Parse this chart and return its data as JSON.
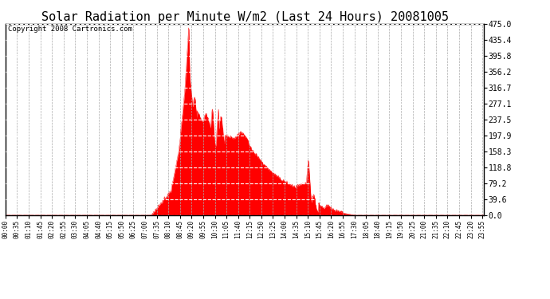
{
  "title": "Solar Radiation per Minute W/m2 (Last 24 Hours) 20081005",
  "copyright_text": "Copyright 2008 Cartronics.com",
  "y_ticks": [
    0.0,
    39.6,
    79.2,
    118.8,
    158.3,
    197.9,
    237.5,
    277.1,
    316.7,
    356.2,
    395.8,
    435.4,
    475.0
  ],
  "y_min": 0.0,
  "y_max": 475.0,
  "fill_color": "#ff0000",
  "line_color": "#ff0000",
  "bg_color": "#ffffff",
  "border_color": "#000000",
  "title_fontsize": 11,
  "copyright_fontsize": 6.5,
  "x_tick_every_minutes": 35
}
